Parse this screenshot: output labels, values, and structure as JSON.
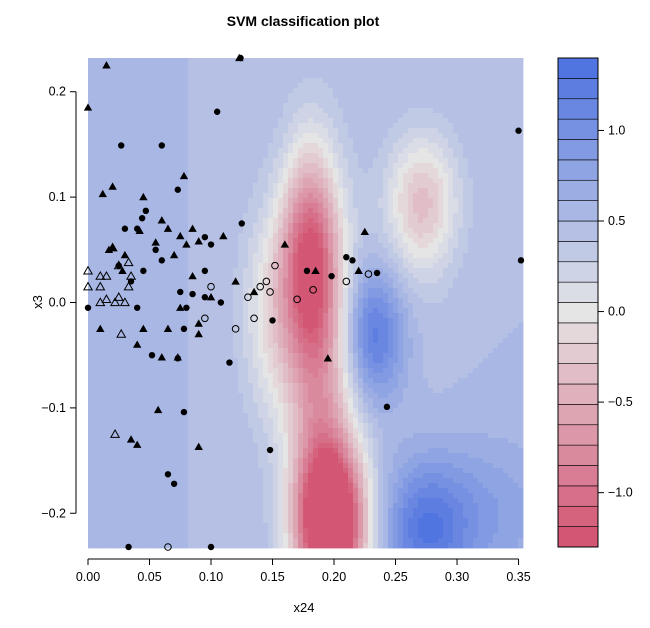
{
  "chart_data": {
    "type": "scatter",
    "title": "SVM classification plot",
    "xlabel": "x24",
    "ylabel": "x3",
    "xlim": [
      0.0,
      0.352
    ],
    "ylim": [
      -0.232,
      0.232
    ],
    "x_ticks": [
      "0.00",
      "0.05",
      "0.10",
      "0.15",
      "0.20",
      "0.25",
      "0.30",
      "0.35"
    ],
    "x_tick_values": [
      0.0,
      0.05,
      0.1,
      0.15,
      0.2,
      0.25,
      0.3,
      0.35
    ],
    "y_ticks": [
      "−0.2",
      "−0.1",
      "0.0",
      "0.1",
      "0.2"
    ],
    "y_tick_values": [
      -0.2,
      -0.1,
      0.0,
      0.1,
      0.2
    ],
    "colorbar": {
      "range": [
        -1.3,
        1.4
      ],
      "tick_labels": [
        "−1.0",
        "−0.5",
        "0.0",
        "0.5",
        "1.0"
      ],
      "tick_values": [
        -1.0,
        -0.5,
        0.0,
        0.5,
        1.0
      ],
      "low_color": "#d2506f",
      "mid_color": "#e6e6e6",
      "high_color": "#4a6fe0",
      "levels": 24
    },
    "background_color": "#ccd0e3",
    "decision_surface": [
      {
        "x": 0.18,
        "y": 0.045,
        "v": -0.75,
        "sx": 0.016,
        "sy": 0.07
      },
      {
        "x": 0.19,
        "y": -0.09,
        "v": -0.55,
        "sx": 0.02,
        "sy": 0.12
      },
      {
        "x": 0.198,
        "y": -0.21,
        "v": -1.2,
        "sx": 0.02,
        "sy": 0.05
      },
      {
        "x": 0.15,
        "y": -0.01,
        "v": -0.3,
        "sx": 0.018,
        "sy": 0.07
      },
      {
        "x": 0.272,
        "y": 0.095,
        "v": -0.45,
        "sx": 0.02,
        "sy": 0.045
      },
      {
        "x": 0.232,
        "y": -0.03,
        "v": 1.35,
        "sx": 0.018,
        "sy": 0.045
      },
      {
        "x": 0.25,
        "y": 0.0,
        "v": 0.4,
        "sx": 0.03,
        "sy": 0.07
      },
      {
        "x": 0.275,
        "y": -0.215,
        "v": 1.25,
        "sx": 0.025,
        "sy": 0.045
      },
      {
        "x": 0.33,
        "y": -0.2,
        "v": 0.8,
        "sx": 0.035,
        "sy": 0.05
      },
      {
        "x": 0.3,
        "y": -0.15,
        "v": 0.5,
        "sx": 0.04,
        "sy": 0.06
      }
    ],
    "series": [
      {
        "marker": "filled-circle",
        "points": [
          [
            0.0,
            -0.005
          ],
          [
            0.027,
            0.149
          ],
          [
            0.06,
            0.149
          ],
          [
            0.073,
            0.107
          ],
          [
            0.105,
            0.181
          ],
          [
            0.047,
            0.087
          ],
          [
            0.044,
            0.08
          ],
          [
            0.04,
            0.07
          ],
          [
            0.03,
            0.07
          ],
          [
            0.025,
            0.035
          ],
          [
            0.045,
            0.03
          ],
          [
            0.035,
            0.02
          ],
          [
            0.04,
            -0.005
          ],
          [
            0.055,
            0.05
          ],
          [
            0.06,
            0.04
          ],
          [
            0.095,
            0.062
          ],
          [
            0.125,
            0.075
          ],
          [
            0.1,
            0.055
          ],
          [
            0.095,
            0.03
          ],
          [
            0.095,
            0.005
          ],
          [
            0.075,
            0.01
          ],
          [
            0.085,
            0.008
          ],
          [
            0.08,
            -0.005
          ],
          [
            0.078,
            -0.025
          ],
          [
            0.073,
            -0.053
          ],
          [
            0.052,
            -0.05
          ],
          [
            0.115,
            -0.057
          ],
          [
            0.108,
            0.0
          ],
          [
            0.15,
            -0.017
          ],
          [
            0.21,
            0.043
          ],
          [
            0.215,
            0.04
          ],
          [
            0.235,
            0.028
          ],
          [
            0.178,
            0.03
          ],
          [
            0.198,
            0.025
          ],
          [
            0.078,
            -0.104
          ],
          [
            0.065,
            -0.163
          ],
          [
            0.07,
            -0.172
          ],
          [
            0.148,
            -0.14
          ],
          [
            0.243,
            -0.099
          ],
          [
            0.35,
            0.163
          ],
          [
            0.352,
            0.04
          ],
          [
            0.033,
            -0.232
          ],
          [
            0.1,
            -0.232
          ],
          [
            0.124,
            0.232
          ]
        ]
      },
      {
        "marker": "filled-triangle",
        "points": [
          [
            0.0,
            0.185
          ],
          [
            0.015,
            0.225
          ],
          [
            0.012,
            0.103
          ],
          [
            0.02,
            0.11
          ],
          [
            0.045,
            0.1
          ],
          [
            0.042,
            0.068
          ],
          [
            0.06,
            0.078
          ],
          [
            0.065,
            0.07
          ],
          [
            0.075,
            0.063
          ],
          [
            0.085,
            0.07
          ],
          [
            0.055,
            0.057
          ],
          [
            0.02,
            0.052
          ],
          [
            0.017,
            0.05
          ],
          [
            0.03,
            0.045
          ],
          [
            0.07,
            0.045
          ],
          [
            0.078,
            0.12
          ],
          [
            0.11,
            0.063
          ],
          [
            0.08,
            0.055
          ],
          [
            0.085,
            0.025
          ],
          [
            0.075,
            -0.005
          ],
          [
            0.09,
            -0.03
          ],
          [
            0.1,
            0.005
          ],
          [
            0.09,
            0.058
          ],
          [
            0.12,
            0.02
          ],
          [
            0.09,
            -0.02
          ],
          [
            0.045,
            -0.025
          ],
          [
            0.065,
            -0.025
          ],
          [
            0.04,
            -0.04
          ],
          [
            0.06,
            -0.052
          ],
          [
            0.073,
            -0.052
          ],
          [
            0.028,
            0.03
          ],
          [
            0.01,
            -0.025
          ],
          [
            0.135,
            0.01
          ],
          [
            0.16,
            0.055
          ],
          [
            0.225,
            0.067
          ],
          [
            0.185,
            0.03
          ],
          [
            0.22,
            0.03
          ],
          [
            0.04,
            -0.135
          ],
          [
            0.035,
            -0.13
          ],
          [
            0.057,
            -0.102
          ],
          [
            0.09,
            -0.137
          ],
          [
            0.195,
            -0.053
          ],
          [
            0.123,
            0.232
          ]
        ]
      },
      {
        "marker": "open-circle",
        "points": [
          [
            0.095,
            -0.015
          ],
          [
            0.1,
            0.015
          ],
          [
            0.12,
            -0.025
          ],
          [
            0.135,
            -0.015
          ],
          [
            0.13,
            0.005
          ],
          [
            0.145,
            0.02
          ],
          [
            0.148,
            0.01
          ],
          [
            0.14,
            0.015
          ],
          [
            0.152,
            0.035
          ],
          [
            0.17,
            0.003
          ],
          [
            0.183,
            0.012
          ],
          [
            0.21,
            0.02
          ],
          [
            0.228,
            0.027
          ],
          [
            0.065,
            -0.232
          ]
        ]
      },
      {
        "marker": "open-triangle",
        "points": [
          [
            0.0,
            0.03
          ],
          [
            0.0,
            0.015
          ],
          [
            0.01,
            0.025
          ],
          [
            0.01,
            0.015
          ],
          [
            0.015,
            0.003
          ],
          [
            0.01,
            0.0
          ],
          [
            0.025,
            0.035
          ],
          [
            0.033,
            0.038
          ],
          [
            0.035,
            0.025
          ],
          [
            0.033,
            0.015
          ],
          [
            0.025,
            0.005
          ],
          [
            0.03,
            0.0
          ],
          [
            0.022,
            0.0
          ],
          [
            0.015,
            0.025
          ],
          [
            0.02,
            0.052
          ],
          [
            0.027,
            -0.03
          ],
          [
            0.022,
            -0.125
          ]
        ]
      }
    ]
  }
}
